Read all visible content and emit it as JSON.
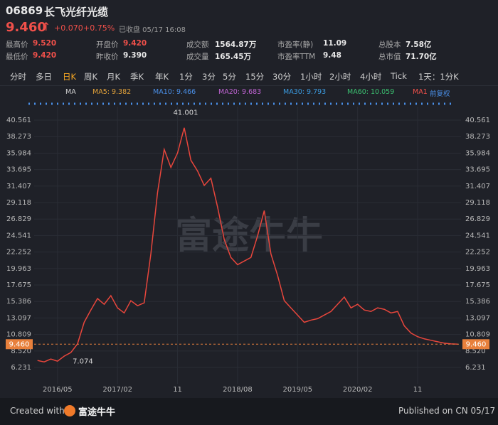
{
  "header": {
    "code": "06869",
    "name": "长飞光纤光缆",
    "price": "9.460",
    "change": "+0.070",
    "change_pct": "+0.75%",
    "status": "已收盘 05/17 16:08",
    "stats": [
      [
        {
          "label": "最高价",
          "value": "9.520",
          "color": "#f0504a"
        },
        {
          "label": "开盘价",
          "value": "9.420",
          "color": "#f0504a"
        },
        {
          "label": "成交额",
          "value": "1564.87万",
          "color": "#e8e8e8"
        },
        {
          "label": "市盈率(静)",
          "value": "11.09",
          "color": "#e8e8e8"
        },
        {
          "label": "总股本",
          "value": "7.58亿",
          "color": "#e8e8e8"
        }
      ],
      [
        {
          "label": "最低价",
          "value": "9.420",
          "color": "#f0504a"
        },
        {
          "label": "昨收价",
          "value": "9.390",
          "color": "#e8e8e8"
        },
        {
          "label": "成交量",
          "value": "165.45万",
          "color": "#e8e8e8"
        },
        {
          "label": "市盈率TTM",
          "value": "9.48",
          "color": "#e8e8e8"
        },
        {
          "label": "总市值",
          "value": "71.70亿",
          "color": "#e8e8e8"
        }
      ]
    ]
  },
  "tabs": {
    "items": [
      "分时",
      "多日",
      "日K",
      "周K",
      "月K",
      "季K",
      "年K",
      "1分",
      "3分",
      "5分",
      "15分",
      "30分",
      "1小时",
      "2小时",
      "4小时",
      "Tick",
      "1天：1分K"
    ],
    "active": 2
  },
  "toolbar": {
    "items": [
      {
        "text": "MA",
        "color": "#cfcfcf"
      },
      {
        "text": "MA5: 9.382",
        "color": "#e3a23a"
      },
      {
        "text": "MA10: 9.466",
        "color": "#4a8fe7"
      },
      {
        "text": "MA20: 9.683",
        "color": "#c064d4"
      },
      {
        "text": "MA30: 9.793",
        "color": "#3b9be0"
      },
      {
        "text": "MA60: 10.059",
        "color": "#3bc070"
      },
      {
        "text": "MA1",
        "color": "#f0504a"
      },
      {
        "text": "前复权",
        "color": "#4a8fe7"
      }
    ]
  },
  "chart_data": {
    "type": "line",
    "color": "#e8463c",
    "categories": [
      null,
      null,
      null,
      "2016/05",
      null,
      null,
      null,
      null,
      null,
      null,
      null,
      null,
      "2017/02",
      null,
      null,
      null,
      null,
      null,
      null,
      null,
      null,
      "11",
      null,
      null,
      null,
      null,
      null,
      null,
      null,
      null,
      "2018/08",
      null,
      null,
      null,
      null,
      null,
      null,
      null,
      null,
      "2019/05",
      null,
      null,
      null,
      null,
      null,
      null,
      null,
      null,
      "2020/02",
      null,
      null,
      null,
      null,
      null,
      null,
      null,
      null,
      "11",
      null,
      null,
      null,
      null,
      null,
      null
    ],
    "values": [
      7.2,
      7.0,
      7.4,
      7.1,
      7.8,
      8.3,
      9.5,
      12.5,
      14.2,
      15.8,
      15.0,
      16.2,
      14.5,
      13.8,
      15.5,
      14.8,
      15.2,
      22.0,
      30.5,
      36.5,
      34.0,
      36.0,
      39.5,
      35.0,
      33.5,
      31.5,
      32.5,
      28.5,
      24.0,
      21.5,
      20.5,
      21.0,
      21.5,
      24.5,
      28.0,
      22.0,
      19.0,
      15.5,
      14.5,
      13.5,
      12.5,
      12.8,
      13.0,
      13.5,
      14.0,
      15.0,
      16.0,
      14.5,
      15.0,
      14.2,
      14.0,
      14.5,
      14.3,
      13.8,
      14.0,
      12.0,
      11.0,
      10.5,
      10.2,
      10.0,
      9.8,
      9.6,
      9.5,
      9.46
    ],
    "ylim": [
      4.95,
      42.44
    ],
    "yticks": [
      6.231,
      {
        "value": 8.52,
        "label": "8.520"
      },
      10.809,
      13.097,
      15.386,
      17.675,
      19.963,
      22.252,
      24.541,
      26.829,
      29.118,
      31.407,
      33.695,
      35.984,
      38.273,
      40.561
    ],
    "grid": true,
    "price_line": {
      "value": 9.46,
      "label": "9.460",
      "color": "#e8803c"
    },
    "annotations": [
      "41.001",
      "7.074"
    ]
  },
  "watermark": "富途牛牛",
  "footer": {
    "created": "Created with",
    "brand": "富途牛牛",
    "published": "Published on CN 05/17"
  }
}
